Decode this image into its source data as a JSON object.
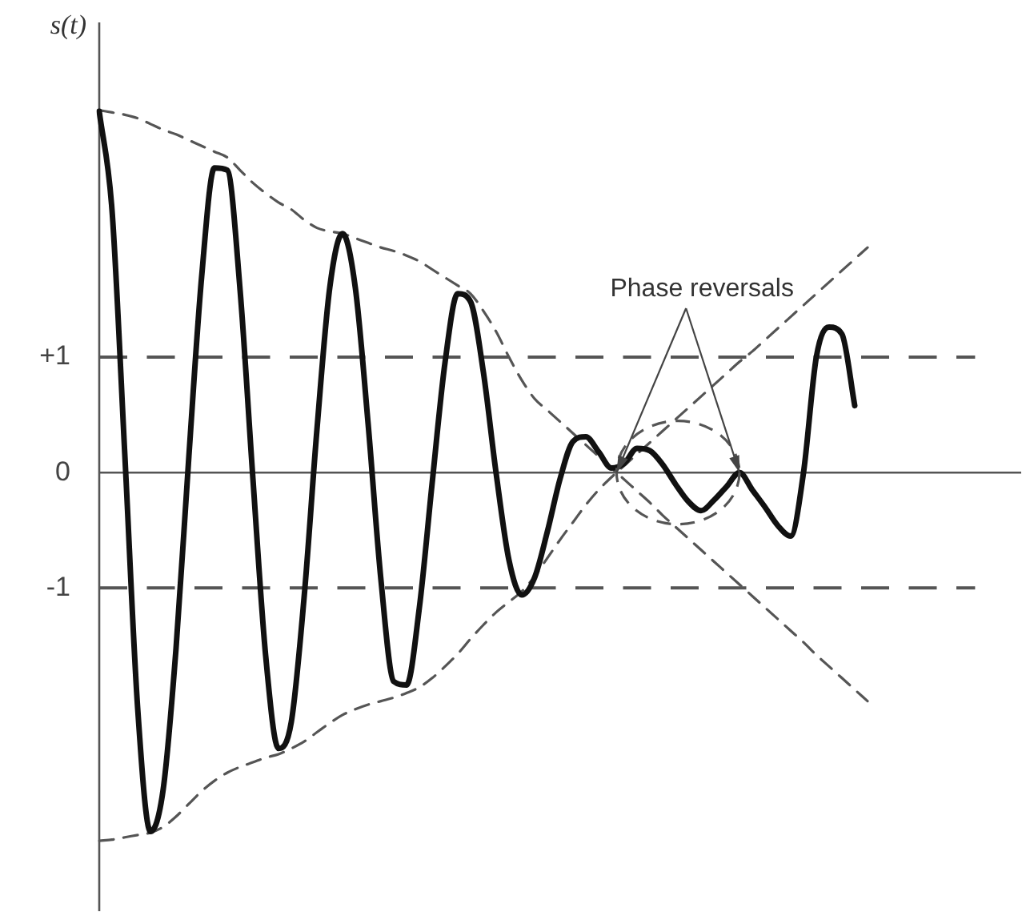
{
  "chart_data": {
    "type": "line",
    "ylabel": "s(t)",
    "annotations": [
      "Phase reversals"
    ],
    "categories": [
      null,
      null,
      null,
      null,
      null,
      null,
      null,
      null,
      null,
      null,
      null,
      null,
      null,
      null,
      null,
      null,
      null,
      null,
      null,
      null,
      null,
      null,
      null,
      null,
      null,
      null,
      null,
      null,
      null,
      null,
      null,
      null,
      null,
      null,
      null,
      null,
      null,
      null,
      null,
      null,
      null,
      null,
      null,
      null,
      null,
      null,
      null,
      null,
      null,
      null,
      null,
      null,
      null,
      null,
      null,
      null,
      null,
      null,
      null,
      null,
      null,
      null,
      null,
      null,
      null,
      null,
      null,
      null,
      null,
      null,
      null,
      null,
      null
    ],
    "series": [
      {
        "color": "#111111",
        "line_style": "solid",
        "values": [
          3.13,
          2.27,
          0.15,
          -2.04,
          -3.11,
          -2.74,
          -1.52,
          0.14,
          1.7,
          2.64,
          2.62,
          1.58,
          -0.05,
          -1.59,
          -2.39,
          -2.16,
          -1.08,
          0.37,
          1.6,
          2.07,
          1.6,
          0.42,
          -0.93,
          -1.81,
          -1.84,
          -1.17,
          -0.09,
          0.95,
          1.55,
          1.48,
          0.87,
          -0.01,
          -0.76,
          -1.06,
          -0.91,
          -0.51,
          -0.05,
          0.27,
          0.31,
          0.18,
          0.04,
          0.08,
          0.21,
          0.19,
          0.07,
          -0.1,
          -0.25,
          -0.33,
          -0.24,
          -0.12,
          0,
          -0.15,
          -0.3,
          -0.46,
          -0.55,
          0.0,
          1.0,
          1.26,
          1.2,
          0.58,
          null,
          null,
          null,
          null,
          null,
          null,
          null,
          null,
          null,
          null,
          null,
          null,
          null
        ]
      },
      {
        "color": "#555555",
        "line_style": "dashed",
        "values": [
          3.14,
          3.12,
          3.1,
          3.07,
          3.02,
          2.97,
          2.93,
          2.88,
          2.83,
          2.78,
          2.73,
          2.62,
          2.51,
          2.42,
          2.34,
          2.28,
          2.19,
          2.12,
          2.09,
          2.07,
          2.03,
          1.99,
          1.95,
          1.92,
          1.88,
          1.83,
          1.76,
          1.69,
          1.62,
          1.55,
          1.4,
          1.22,
          1.0,
          0.8,
          0.64,
          0.54,
          0.44,
          0.34,
          0.24,
          0.14,
          0.04,
          -0.06,
          -0.16,
          -0.26,
          -0.37,
          -0.47,
          -0.57,
          -0.67,
          -0.77,
          -0.87,
          -0.97,
          -1.07,
          -1.17,
          -1.27,
          -1.37,
          -1.47,
          -1.58,
          -1.68,
          -1.78,
          -1.88,
          -1.98,
          null,
          null,
          null,
          null,
          null,
          null,
          null,
          null,
          null,
          null,
          null,
          null
        ]
      },
      {
        "color": "#555555",
        "line_style": "dashed",
        "values": [
          -3.19,
          -3.18,
          -3.16,
          -3.14,
          -3.12,
          -3.07,
          -2.98,
          -2.87,
          -2.76,
          -2.67,
          -2.6,
          -2.55,
          -2.51,
          -2.47,
          -2.44,
          -2.39,
          -2.33,
          -2.25,
          -2.17,
          -2.1,
          -2.05,
          -2.01,
          -1.98,
          -1.95,
          -1.91,
          -1.86,
          -1.78,
          -1.68,
          -1.57,
          -1.44,
          -1.32,
          -1.21,
          -1.12,
          -1.03,
          -0.9,
          -0.74,
          -0.58,
          -0.43,
          -0.28,
          -0.15,
          -0.04,
          0.06,
          0.16,
          0.26,
          0.36,
          0.46,
          0.56,
          0.66,
          0.76,
          0.86,
          0.96,
          1.05,
          1.15,
          1.25,
          1.35,
          1.45,
          1.55,
          1.65,
          1.75,
          1.85,
          1.95,
          null,
          null,
          null,
          null,
          null,
          null,
          null,
          null,
          null,
          null,
          null,
          null
        ]
      }
    ],
    "ylim": [
      -3.8,
      3.9
    ],
    "yticks": [
      {
        "value": 1,
        "label": "+1"
      },
      0,
      -1
    ],
    "ref_lines": [
      {
        "axis": "y",
        "value": 1,
        "color": "#555555",
        "line_style": "dashed"
      },
      {
        "axis": "y",
        "value": -1,
        "color": "#555555",
        "line_style": "dashed"
      }
    ],
    "tick_labels": "y",
    "marker": "none"
  }
}
